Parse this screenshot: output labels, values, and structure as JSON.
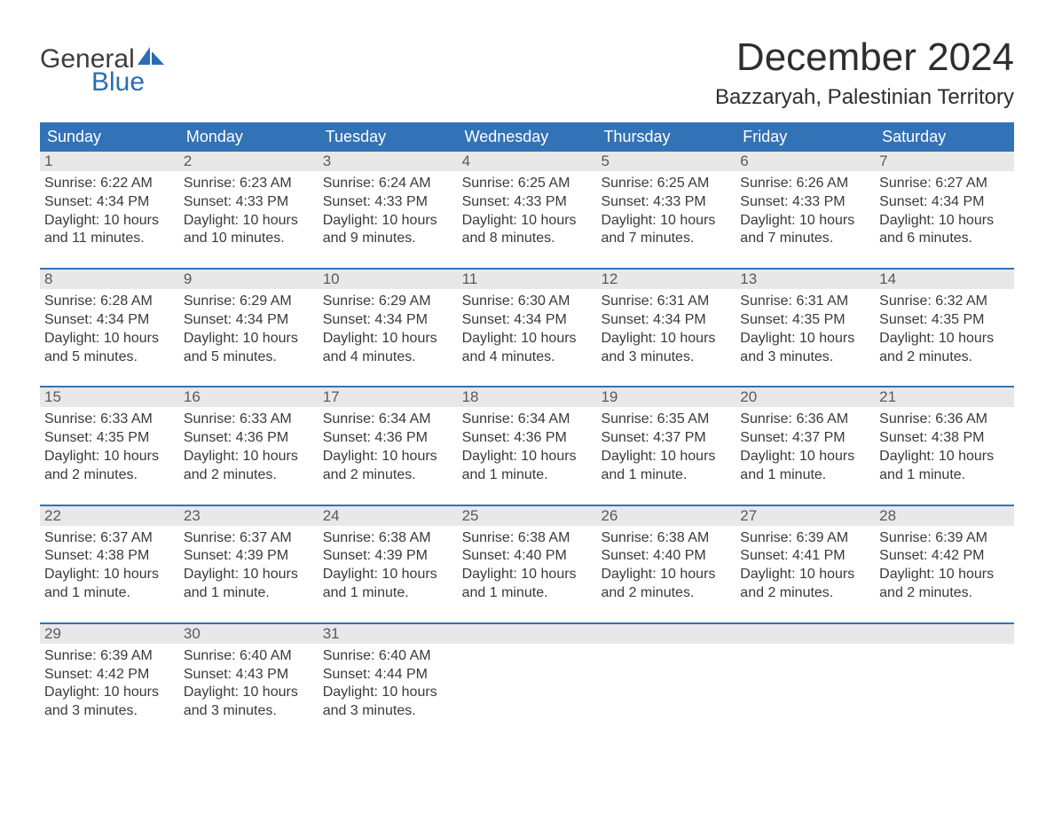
{
  "logo": {
    "text1": "General",
    "text2": "Blue",
    "accent": "#2a6db3"
  },
  "title": "December 2024",
  "location": "Bazzaryah, Palestinian Territory",
  "colors": {
    "header_bg": "#3272b7",
    "header_text": "#ffffff",
    "daynum_bg": "#e8e8e8",
    "body_text": "#3a3a3a",
    "daynum_text": "#5a5a5a",
    "week_border": "#3272b7",
    "page_bg": "#ffffff"
  },
  "day_headers": [
    "Sunday",
    "Monday",
    "Tuesday",
    "Wednesday",
    "Thursday",
    "Friday",
    "Saturday"
  ],
  "weeks": [
    {
      "days": [
        {
          "num": "1",
          "sunrise": "Sunrise: 6:22 AM",
          "sunset": "Sunset: 4:34 PM",
          "dl1": "Daylight: 10 hours",
          "dl2": "and 11 minutes."
        },
        {
          "num": "2",
          "sunrise": "Sunrise: 6:23 AM",
          "sunset": "Sunset: 4:33 PM",
          "dl1": "Daylight: 10 hours",
          "dl2": "and 10 minutes."
        },
        {
          "num": "3",
          "sunrise": "Sunrise: 6:24 AM",
          "sunset": "Sunset: 4:33 PM",
          "dl1": "Daylight: 10 hours",
          "dl2": "and 9 minutes."
        },
        {
          "num": "4",
          "sunrise": "Sunrise: 6:25 AM",
          "sunset": "Sunset: 4:33 PM",
          "dl1": "Daylight: 10 hours",
          "dl2": "and 8 minutes."
        },
        {
          "num": "5",
          "sunrise": "Sunrise: 6:25 AM",
          "sunset": "Sunset: 4:33 PM",
          "dl1": "Daylight: 10 hours",
          "dl2": "and 7 minutes."
        },
        {
          "num": "6",
          "sunrise": "Sunrise: 6:26 AM",
          "sunset": "Sunset: 4:33 PM",
          "dl1": "Daylight: 10 hours",
          "dl2": "and 7 minutes."
        },
        {
          "num": "7",
          "sunrise": "Sunrise: 6:27 AM",
          "sunset": "Sunset: 4:34 PM",
          "dl1": "Daylight: 10 hours",
          "dl2": "and 6 minutes."
        }
      ]
    },
    {
      "days": [
        {
          "num": "8",
          "sunrise": "Sunrise: 6:28 AM",
          "sunset": "Sunset: 4:34 PM",
          "dl1": "Daylight: 10 hours",
          "dl2": "and 5 minutes."
        },
        {
          "num": "9",
          "sunrise": "Sunrise: 6:29 AM",
          "sunset": "Sunset: 4:34 PM",
          "dl1": "Daylight: 10 hours",
          "dl2": "and 5 minutes."
        },
        {
          "num": "10",
          "sunrise": "Sunrise: 6:29 AM",
          "sunset": "Sunset: 4:34 PM",
          "dl1": "Daylight: 10 hours",
          "dl2": "and 4 minutes."
        },
        {
          "num": "11",
          "sunrise": "Sunrise: 6:30 AM",
          "sunset": "Sunset: 4:34 PM",
          "dl1": "Daylight: 10 hours",
          "dl2": "and 4 minutes."
        },
        {
          "num": "12",
          "sunrise": "Sunrise: 6:31 AM",
          "sunset": "Sunset: 4:34 PM",
          "dl1": "Daylight: 10 hours",
          "dl2": "and 3 minutes."
        },
        {
          "num": "13",
          "sunrise": "Sunrise: 6:31 AM",
          "sunset": "Sunset: 4:35 PM",
          "dl1": "Daylight: 10 hours",
          "dl2": "and 3 minutes."
        },
        {
          "num": "14",
          "sunrise": "Sunrise: 6:32 AM",
          "sunset": "Sunset: 4:35 PM",
          "dl1": "Daylight: 10 hours",
          "dl2": "and 2 minutes."
        }
      ]
    },
    {
      "days": [
        {
          "num": "15",
          "sunrise": "Sunrise: 6:33 AM",
          "sunset": "Sunset: 4:35 PM",
          "dl1": "Daylight: 10 hours",
          "dl2": "and 2 minutes."
        },
        {
          "num": "16",
          "sunrise": "Sunrise: 6:33 AM",
          "sunset": "Sunset: 4:36 PM",
          "dl1": "Daylight: 10 hours",
          "dl2": "and 2 minutes."
        },
        {
          "num": "17",
          "sunrise": "Sunrise: 6:34 AM",
          "sunset": "Sunset: 4:36 PM",
          "dl1": "Daylight: 10 hours",
          "dl2": "and 2 minutes."
        },
        {
          "num": "18",
          "sunrise": "Sunrise: 6:34 AM",
          "sunset": "Sunset: 4:36 PM",
          "dl1": "Daylight: 10 hours",
          "dl2": "and 1 minute."
        },
        {
          "num": "19",
          "sunrise": "Sunrise: 6:35 AM",
          "sunset": "Sunset: 4:37 PM",
          "dl1": "Daylight: 10 hours",
          "dl2": "and 1 minute."
        },
        {
          "num": "20",
          "sunrise": "Sunrise: 6:36 AM",
          "sunset": "Sunset: 4:37 PM",
          "dl1": "Daylight: 10 hours",
          "dl2": "and 1 minute."
        },
        {
          "num": "21",
          "sunrise": "Sunrise: 6:36 AM",
          "sunset": "Sunset: 4:38 PM",
          "dl1": "Daylight: 10 hours",
          "dl2": "and 1 minute."
        }
      ]
    },
    {
      "days": [
        {
          "num": "22",
          "sunrise": "Sunrise: 6:37 AM",
          "sunset": "Sunset: 4:38 PM",
          "dl1": "Daylight: 10 hours",
          "dl2": "and 1 minute."
        },
        {
          "num": "23",
          "sunrise": "Sunrise: 6:37 AM",
          "sunset": "Sunset: 4:39 PM",
          "dl1": "Daylight: 10 hours",
          "dl2": "and 1 minute."
        },
        {
          "num": "24",
          "sunrise": "Sunrise: 6:38 AM",
          "sunset": "Sunset: 4:39 PM",
          "dl1": "Daylight: 10 hours",
          "dl2": "and 1 minute."
        },
        {
          "num": "25",
          "sunrise": "Sunrise: 6:38 AM",
          "sunset": "Sunset: 4:40 PM",
          "dl1": "Daylight: 10 hours",
          "dl2": "and 1 minute."
        },
        {
          "num": "26",
          "sunrise": "Sunrise: 6:38 AM",
          "sunset": "Sunset: 4:40 PM",
          "dl1": "Daylight: 10 hours",
          "dl2": "and 2 minutes."
        },
        {
          "num": "27",
          "sunrise": "Sunrise: 6:39 AM",
          "sunset": "Sunset: 4:41 PM",
          "dl1": "Daylight: 10 hours",
          "dl2": "and 2 minutes."
        },
        {
          "num": "28",
          "sunrise": "Sunrise: 6:39 AM",
          "sunset": "Sunset: 4:42 PM",
          "dl1": "Daylight: 10 hours",
          "dl2": "and 2 minutes."
        }
      ]
    },
    {
      "days": [
        {
          "num": "29",
          "sunrise": "Sunrise: 6:39 AM",
          "sunset": "Sunset: 4:42 PM",
          "dl1": "Daylight: 10 hours",
          "dl2": "and 3 minutes."
        },
        {
          "num": "30",
          "sunrise": "Sunrise: 6:40 AM",
          "sunset": "Sunset: 4:43 PM",
          "dl1": "Daylight: 10 hours",
          "dl2": "and 3 minutes."
        },
        {
          "num": "31",
          "sunrise": "Sunrise: 6:40 AM",
          "sunset": "Sunset: 4:44 PM",
          "dl1": "Daylight: 10 hours",
          "dl2": "and 3 minutes."
        },
        {
          "num": "",
          "sunrise": "",
          "sunset": "",
          "dl1": "",
          "dl2": ""
        },
        {
          "num": "",
          "sunrise": "",
          "sunset": "",
          "dl1": "",
          "dl2": ""
        },
        {
          "num": "",
          "sunrise": "",
          "sunset": "",
          "dl1": "",
          "dl2": ""
        },
        {
          "num": "",
          "sunrise": "",
          "sunset": "",
          "dl1": "",
          "dl2": ""
        }
      ]
    }
  ]
}
